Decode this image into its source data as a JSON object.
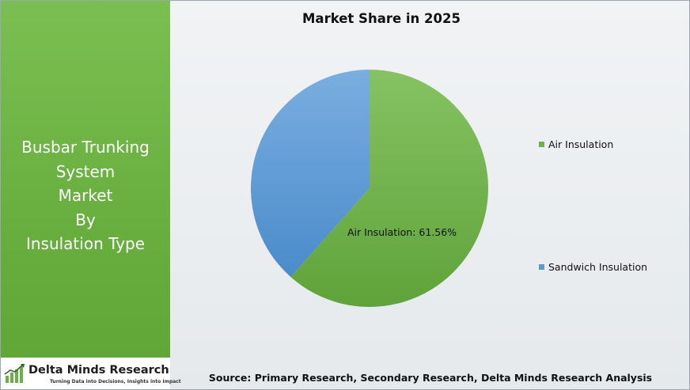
{
  "panel": {
    "title_lines": [
      "Busbar Trunking",
      "System",
      "Market",
      "By",
      "Insulation Type"
    ]
  },
  "logo": {
    "name": "Delta Minds Research",
    "tagline": "Turning Data into Decisions, Insights into Impact",
    "icon": "bar-growth-icon"
  },
  "colors": {
    "panel_green": "#6cb243",
    "air": "#6eb24a",
    "sandwich": "#5b9bd5"
  },
  "chart_data": {
    "type": "pie",
    "title": "Market Share in 2025",
    "slices": [
      {
        "label": "Air Insulation",
        "value": 61.56,
        "data_label": "Air Insulation: 61.56%",
        "color": "#6eb24a"
      },
      {
        "label": "Sandwich Insulation",
        "value": 38.44,
        "color": "#5b9bd5"
      }
    ],
    "legend": {
      "position": "right",
      "entries": [
        "Air Insulation",
        "Sandwich Insulation"
      ]
    }
  },
  "source": "Source: Primary Research, Secondary Research, Delta Minds Research Analysis"
}
